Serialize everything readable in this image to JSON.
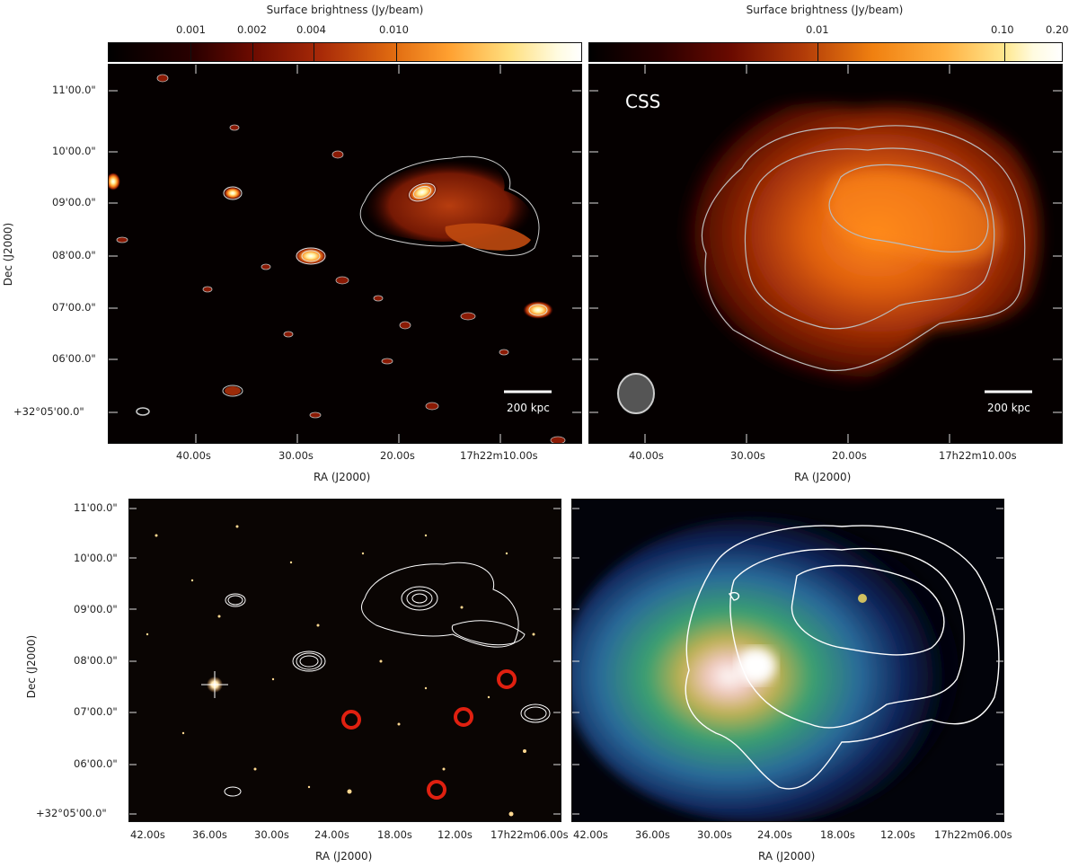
{
  "colorbars": [
    {
      "label": "Surface brightness (Jy/beam)",
      "ticks": [
        "0.001",
        "0.002",
        "0.004",
        "0.010"
      ]
    },
    {
      "label": "Surface brightness (Jy/beam)",
      "ticks": [
        "0.01",
        "0.10",
        "0.20"
      ]
    }
  ],
  "top_panels": {
    "dec_ticks": [
      "11'00.0\"",
      "10'00.0\"",
      "09'00.0\"",
      "08'00.0\"",
      "07'00.0\"",
      "06'00.0\"",
      "+32°05'00.0\""
    ],
    "ra_ticks": [
      "40.00s",
      "30.00s",
      "20.00s",
      "17h22m10.00s"
    ],
    "ra_label": "RA (J2000)",
    "dec_label": "Dec (J2000)",
    "scalebar_label": "200 kpc",
    "right_panel_tag": "CSS"
  },
  "bottom_panels": {
    "dec_ticks": [
      "11'00.0\"",
      "10'00.0\"",
      "09'00.0\"",
      "08'00.0\"",
      "07'00.0\"",
      "06'00.0\"",
      "+32°05'00.0\""
    ],
    "ra_ticks": [
      "42.00s",
      "36.00s",
      "30.00s",
      "24.00s",
      "18.00s",
      "12.00s",
      "17h22m06.00s"
    ],
    "ra_label": "RA (J2000)",
    "dec_label": "Dec (J2000)"
  },
  "colors": {
    "radio_dark": "#000000",
    "radio_mid": "#b02a0a",
    "radio_bright": "#ff8c1a",
    "radio_white": "#fffbe0",
    "xray_blue": "#1a3a8c",
    "xray_green": "#3aa070",
    "contour": "#cccccc",
    "marker": "#e02010"
  }
}
